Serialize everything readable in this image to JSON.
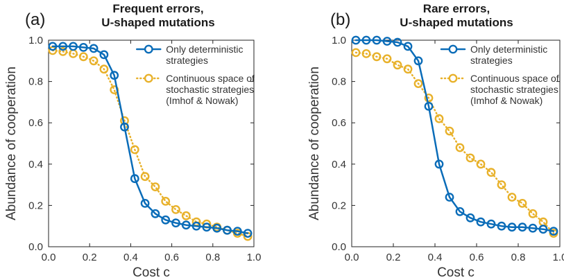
{
  "chart_data": [
    {
      "type": "line",
      "panel_label": "(a)",
      "title_lines": [
        "Frequent errors,",
        "U-shaped mutations"
      ],
      "xlabel": "Cost c",
      "ylabel": "Abundance of cooperation",
      "xlim": [
        0,
        1
      ],
      "ylim": [
        0,
        1
      ],
      "xticks": [
        "0.0",
        "0.2",
        "0.4",
        "0.6",
        "0.8",
        "1.0"
      ],
      "yticks": [
        "0.0",
        "0.2",
        "0.4",
        "0.6",
        "0.8",
        "1.0"
      ],
      "legend_position": "top-right",
      "x": [
        0.02,
        0.07,
        0.12,
        0.17,
        0.22,
        0.27,
        0.32,
        0.37,
        0.42,
        0.47,
        0.52,
        0.57,
        0.62,
        0.67,
        0.72,
        0.77,
        0.82,
        0.87,
        0.92,
        0.97
      ],
      "series": [
        {
          "name": "Only deterministic strategies",
          "legend_lines": [
            "Only deterministic",
            "strategies"
          ],
          "color": "#0a6cb8",
          "style": "solid",
          "values": [
            0.97,
            0.97,
            0.97,
            0.965,
            0.96,
            0.93,
            0.83,
            0.58,
            0.33,
            0.21,
            0.16,
            0.13,
            0.115,
            0.105,
            0.1,
            0.095,
            0.09,
            0.08,
            0.075,
            0.065
          ]
        },
        {
          "name": "Continuous space of stochastic strategies (Imhof & Nowak)",
          "legend_lines": [
            "Continuous space of",
            "stochastic strategies",
            "(Imhof & Nowak)"
          ],
          "color": "#e8b12a",
          "style": "dotted",
          "values": [
            0.95,
            0.945,
            0.935,
            0.92,
            0.9,
            0.86,
            0.76,
            0.61,
            0.47,
            0.34,
            0.29,
            0.22,
            0.18,
            0.15,
            0.12,
            0.11,
            0.095,
            0.08,
            0.065,
            0.05
          ]
        }
      ]
    },
    {
      "type": "line",
      "panel_label": "(b)",
      "title_lines": [
        "Rare errors,",
        "U-shaped mutations"
      ],
      "xlabel": "Cost c",
      "ylabel": "Abundance of cooperation",
      "xlim": [
        0,
        1
      ],
      "ylim": [
        0,
        1
      ],
      "xticks": [
        "0.0",
        "0.2",
        "0.4",
        "0.6",
        "0.8",
        "1.0"
      ],
      "yticks": [
        "0.0",
        "0.2",
        "0.4",
        "0.6",
        "0.8",
        "1.0"
      ],
      "legend_position": "top-right",
      "x": [
        0.02,
        0.07,
        0.12,
        0.17,
        0.22,
        0.27,
        0.32,
        0.37,
        0.42,
        0.47,
        0.52,
        0.57,
        0.62,
        0.67,
        0.72,
        0.77,
        0.82,
        0.87,
        0.92,
        0.97
      ],
      "series": [
        {
          "name": "Only deterministic strategies",
          "legend_lines": [
            "Only deterministic",
            "strategies"
          ],
          "color": "#0a6cb8",
          "style": "solid",
          "values": [
            1.0,
            1.0,
            1.0,
            0.995,
            0.99,
            0.97,
            0.9,
            0.68,
            0.4,
            0.24,
            0.17,
            0.14,
            0.12,
            0.11,
            0.1,
            0.095,
            0.095,
            0.09,
            0.085,
            0.075
          ]
        },
        {
          "name": "Continuous space of stochastic strategies (Imhof & Nowak)",
          "legend_lines": [
            "Continuous space of",
            "stochastic strategies",
            "(Imhof & Nowak)"
          ],
          "color": "#e8b12a",
          "style": "dotted",
          "values": [
            0.94,
            0.935,
            0.92,
            0.91,
            0.88,
            0.86,
            0.79,
            0.72,
            0.62,
            0.56,
            0.48,
            0.43,
            0.4,
            0.36,
            0.3,
            0.24,
            0.21,
            0.16,
            0.12,
            0.065
          ]
        }
      ]
    }
  ]
}
